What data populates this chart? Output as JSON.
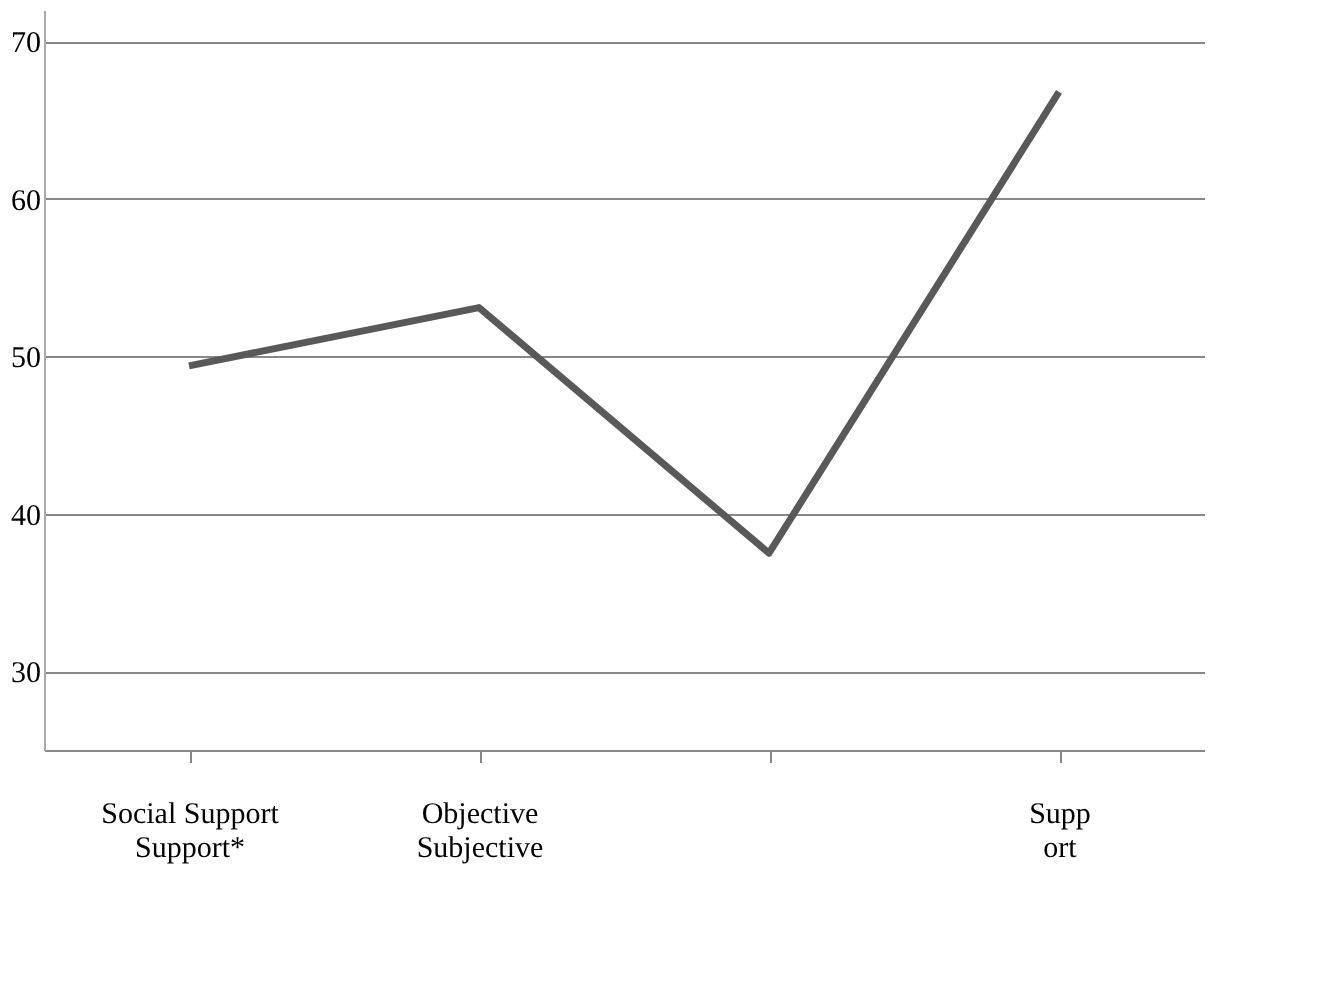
{
  "chart_data": {
    "type": "line",
    "categories": [
      "Social Support\nSupport*",
      "Objective\nSubjective",
      null,
      "Supp\nort"
    ],
    "series": [
      {
        "color": "#595959",
        "values": [
          49.4,
          53.1,
          37.5,
          66.8
        ]
      }
    ],
    "ylim": [
      25,
      72
    ],
    "yticks": [
      30,
      40,
      50,
      60,
      70
    ],
    "grid": "y",
    "marker": "none",
    "line_style": "solid"
  }
}
